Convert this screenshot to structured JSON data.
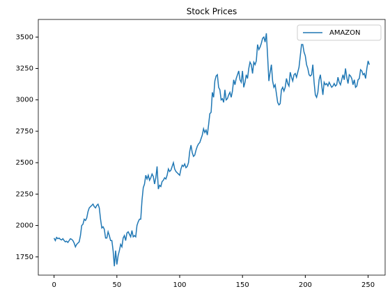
{
  "chart_data": {
    "type": "line",
    "title": "Stock Prices",
    "x": [
      0,
      1,
      2,
      3,
      4,
      5,
      6,
      7,
      8,
      9,
      10,
      11,
      12,
      13,
      14,
      15,
      16,
      17,
      18,
      19,
      20,
      21,
      22,
      23,
      24,
      25,
      26,
      27,
      28,
      29,
      30,
      31,
      32,
      33,
      34,
      35,
      36,
      37,
      38,
      39,
      40,
      41,
      42,
      43,
      44,
      45,
      46,
      47,
      48,
      49,
      50,
      51,
      52,
      53,
      54,
      55,
      56,
      57,
      58,
      59,
      60,
      61,
      62,
      63,
      64,
      65,
      66,
      67,
      68,
      69,
      70,
      71,
      72,
      73,
      74,
      75,
      76,
      77,
      78,
      79,
      80,
      81,
      82,
      83,
      84,
      85,
      86,
      87,
      88,
      89,
      90,
      91,
      92,
      93,
      94,
      95,
      96,
      97,
      98,
      99,
      100,
      101,
      102,
      103,
      104,
      105,
      106,
      107,
      108,
      109,
      110,
      111,
      112,
      113,
      114,
      115,
      116,
      117,
      118,
      119,
      120,
      121,
      122,
      123,
      124,
      125,
      126,
      127,
      128,
      129,
      130,
      131,
      132,
      133,
      134,
      135,
      136,
      137,
      138,
      139,
      140,
      141,
      142,
      143,
      144,
      145,
      146,
      147,
      148,
      149,
      150,
      151,
      152,
      153,
      154,
      155,
      156,
      157,
      158,
      159,
      160,
      161,
      162,
      163,
      164,
      165,
      166,
      167,
      168,
      169,
      170,
      171,
      172,
      173,
      174,
      175,
      176,
      177,
      178,
      179,
      180,
      181,
      182,
      183,
      184,
      185,
      186,
      187,
      188,
      189,
      190,
      191,
      192,
      193,
      194,
      195,
      196,
      197,
      198,
      199,
      200,
      201,
      202,
      203,
      204,
      205,
      206,
      207,
      208,
      209,
      210,
      211,
      212,
      213,
      214,
      215,
      216,
      217,
      218,
      219,
      220,
      221,
      222,
      223,
      224,
      225,
      226,
      227,
      228,
      229,
      230,
      231,
      232,
      233,
      234,
      235,
      236,
      237,
      238,
      239,
      240,
      241,
      242,
      243,
      244,
      245,
      246,
      247,
      248,
      249,
      250,
      251
    ],
    "series": [
      {
        "name": "AMAZON",
        "color": "#1f77b4",
        "values": [
          1900,
          1880,
          1905,
          1895,
          1900,
          1890,
          1885,
          1895,
          1880,
          1870,
          1875,
          1865,
          1880,
          1895,
          1890,
          1880,
          1860,
          1830,
          1850,
          1860,
          1870,
          1920,
          2000,
          2010,
          2050,
          2040,
          2060,
          2110,
          2140,
          2150,
          2160,
          2170,
          2150,
          2140,
          2160,
          2170,
          2140,
          2050,
          1980,
          1990,
          1970,
          1900,
          1900,
          1950,
          1920,
          1880,
          1880,
          1800,
          1676,
          1800,
          1690,
          1760,
          1800,
          1850,
          1830,
          1900,
          1920,
          1880,
          1940,
          1950,
          1930,
          1910,
          1960,
          1910,
          1920,
          1910,
          2000,
          2030,
          2050,
          2050,
          2200,
          2300,
          2330,
          2400,
          2370,
          2400,
          2360,
          2380,
          2410,
          2390,
          2330,
          2380,
          2470,
          2290,
          2320,
          2310,
          2350,
          2360,
          2380,
          2370,
          2400,
          2450,
          2430,
          2440,
          2470,
          2500,
          2450,
          2430,
          2420,
          2410,
          2400,
          2450,
          2480,
          2470,
          2490,
          2460,
          2470,
          2500,
          2590,
          2640,
          2580,
          2550,
          2560,
          2600,
          2630,
          2650,
          2660,
          2690,
          2720,
          2770,
          2740,
          2760,
          2720,
          2800,
          2890,
          2900,
          3060,
          3020,
          3150,
          3190,
          3200,
          3100,
          3080,
          3000,
          3010,
          2980,
          3080,
          3000,
          3010,
          3040,
          3060,
          3020,
          3070,
          3160,
          3120,
          3170,
          3200,
          3230,
          3160,
          3140,
          3230,
          3100,
          3140,
          3200,
          3170,
          3250,
          3300,
          3280,
          3210,
          3300,
          3280,
          3310,
          3440,
          3400,
          3420,
          3450,
          3490,
          3500,
          3460,
          3530,
          3350,
          3150,
          3220,
          3280,
          3150,
          3100,
          3120,
          3050,
          2980,
          2960,
          2970,
          3080,
          3100,
          3070,
          3100,
          3170,
          3130,
          3110,
          3220,
          3180,
          3150,
          3200,
          3210,
          3180,
          3220,
          3260,
          3350,
          3440,
          3440,
          3380,
          3350,
          3280,
          3250,
          3200,
          3190,
          3200,
          3280,
          3140,
          3040,
          3020,
          3060,
          3160,
          3200,
          3120,
          3040,
          3140,
          3120,
          3130,
          3110,
          3140,
          3120,
          3100,
          3110,
          3130,
          3110,
          3120,
          3180,
          3140,
          3120,
          3160,
          3200,
          3160,
          3250,
          3180,
          3130,
          3200,
          3190,
          3170,
          3120,
          3160,
          3100,
          3110,
          3160,
          3170,
          3240,
          3230,
          3200,
          3210,
          3170,
          3250,
          3310,
          3280
        ]
      }
    ],
    "xlim": [
      -12.55,
      263.55
    ],
    "xticks": [
      0,
      50,
      100,
      150,
      200,
      250
    ],
    "ylim": [
      1605,
      3640
    ],
    "yticks": [
      1750,
      2000,
      2250,
      2500,
      2750,
      3000,
      3250,
      3500
    ],
    "legend": "upper right",
    "grid": false
  }
}
